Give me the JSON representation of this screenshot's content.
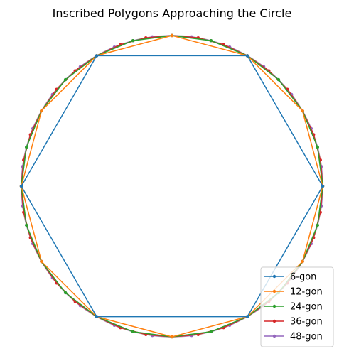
{
  "chart_data": {
    "type": "line",
    "title": "Inscribed Polygons Approaching the Circle",
    "xlabel": "",
    "ylabel": "",
    "xlim": [
      -1.0,
      1.0
    ],
    "ylim": [
      -1.0,
      1.0
    ],
    "axes_visible": false,
    "grid": false,
    "equal_aspect": true,
    "legend_position": "bottom-right",
    "circle": {
      "radius": 1,
      "color": "#bbbbbb"
    },
    "series": [
      {
        "name": "6-gon",
        "sides": 6,
        "radius": 1,
        "start_angle_deg": 0,
        "color": "#1f77b4"
      },
      {
        "name": "12-gon",
        "sides": 12,
        "radius": 1,
        "start_angle_deg": 0,
        "color": "#ff7f0e"
      },
      {
        "name": "24-gon",
        "sides": 24,
        "radius": 1,
        "start_angle_deg": 0,
        "color": "#2ca02c"
      },
      {
        "name": "36-gon",
        "sides": 36,
        "radius": 1,
        "start_angle_deg": 0,
        "color": "#d62728"
      },
      {
        "name": "48-gon",
        "sides": 48,
        "radius": 1,
        "start_angle_deg": 0,
        "color": "#9467bd"
      }
    ]
  }
}
